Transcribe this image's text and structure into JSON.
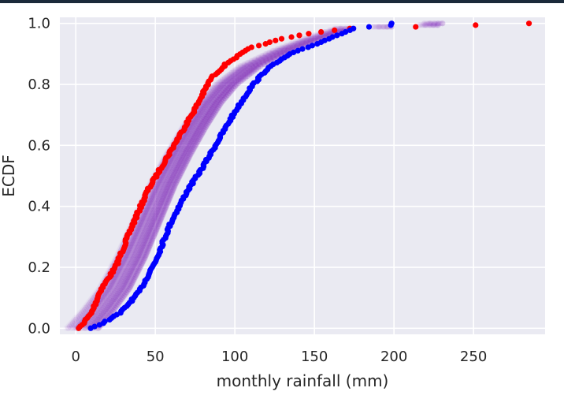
{
  "chart_data": {
    "type": "scatter",
    "title": "",
    "xlabel": "monthly rainfall (mm)",
    "ylabel": "ECDF",
    "xlim": [
      -10,
      295
    ],
    "ylim": [
      -0.02,
      1.02
    ],
    "grid": true,
    "background": "#eaeaf2",
    "xticks": [
      0,
      50,
      100,
      150,
      200,
      250
    ],
    "yticks": [
      0.0,
      0.2,
      0.4,
      0.6,
      0.8,
      1.0
    ],
    "xtick_labels": [
      "0",
      "50",
      "100",
      "150",
      "200",
      "250"
    ],
    "ytick_labels": [
      "0.0",
      "0.2",
      "0.4",
      "0.6",
      "0.8",
      "1.0"
    ],
    "series": [
      {
        "color": "#ff0000",
        "n_points": 180,
        "curve": [
          [
            2,
            0.0
          ],
          [
            10,
            0.05
          ],
          [
            15,
            0.12
          ],
          [
            25,
            0.2
          ],
          [
            35,
            0.33
          ],
          [
            45,
            0.45
          ],
          [
            55,
            0.54
          ],
          [
            65,
            0.63
          ],
          [
            75,
            0.72
          ],
          [
            85,
            0.82
          ],
          [
            95,
            0.87
          ],
          [
            110,
            0.92
          ],
          [
            130,
            0.95
          ],
          [
            150,
            0.97
          ],
          [
            175,
            0.985
          ],
          [
            225,
            0.99
          ],
          [
            285,
            1.0
          ]
        ]
      },
      {
        "color": "#0000ff",
        "n_points": 180,
        "curve": [
          [
            10,
            0.0
          ],
          [
            18,
            0.02
          ],
          [
            28,
            0.05
          ],
          [
            40,
            0.12
          ],
          [
            50,
            0.22
          ],
          [
            60,
            0.35
          ],
          [
            70,
            0.45
          ],
          [
            80,
            0.53
          ],
          [
            90,
            0.62
          ],
          [
            100,
            0.71
          ],
          [
            110,
            0.79
          ],
          [
            120,
            0.85
          ],
          [
            135,
            0.9
          ],
          [
            150,
            0.93
          ],
          [
            175,
            0.985
          ],
          [
            199,
            0.995
          ]
        ]
      },
      {
        "color": "#8c2dbe",
        "opacity": 0.03,
        "n_points": 180,
        "n_bands": 50,
        "curve": [
          [
            5,
            0.0
          ],
          [
            15,
            0.06
          ],
          [
            25,
            0.13
          ],
          [
            35,
            0.23
          ],
          [
            45,
            0.35
          ],
          [
            55,
            0.47
          ],
          [
            65,
            0.57
          ],
          [
            75,
            0.66
          ],
          [
            85,
            0.74
          ],
          [
            95,
            0.8
          ],
          [
            110,
            0.86
          ],
          [
            130,
            0.91
          ],
          [
            150,
            0.95
          ],
          [
            170,
            0.985
          ],
          [
            200,
            0.99
          ],
          [
            225,
            0.995
          ]
        ]
      }
    ]
  }
}
